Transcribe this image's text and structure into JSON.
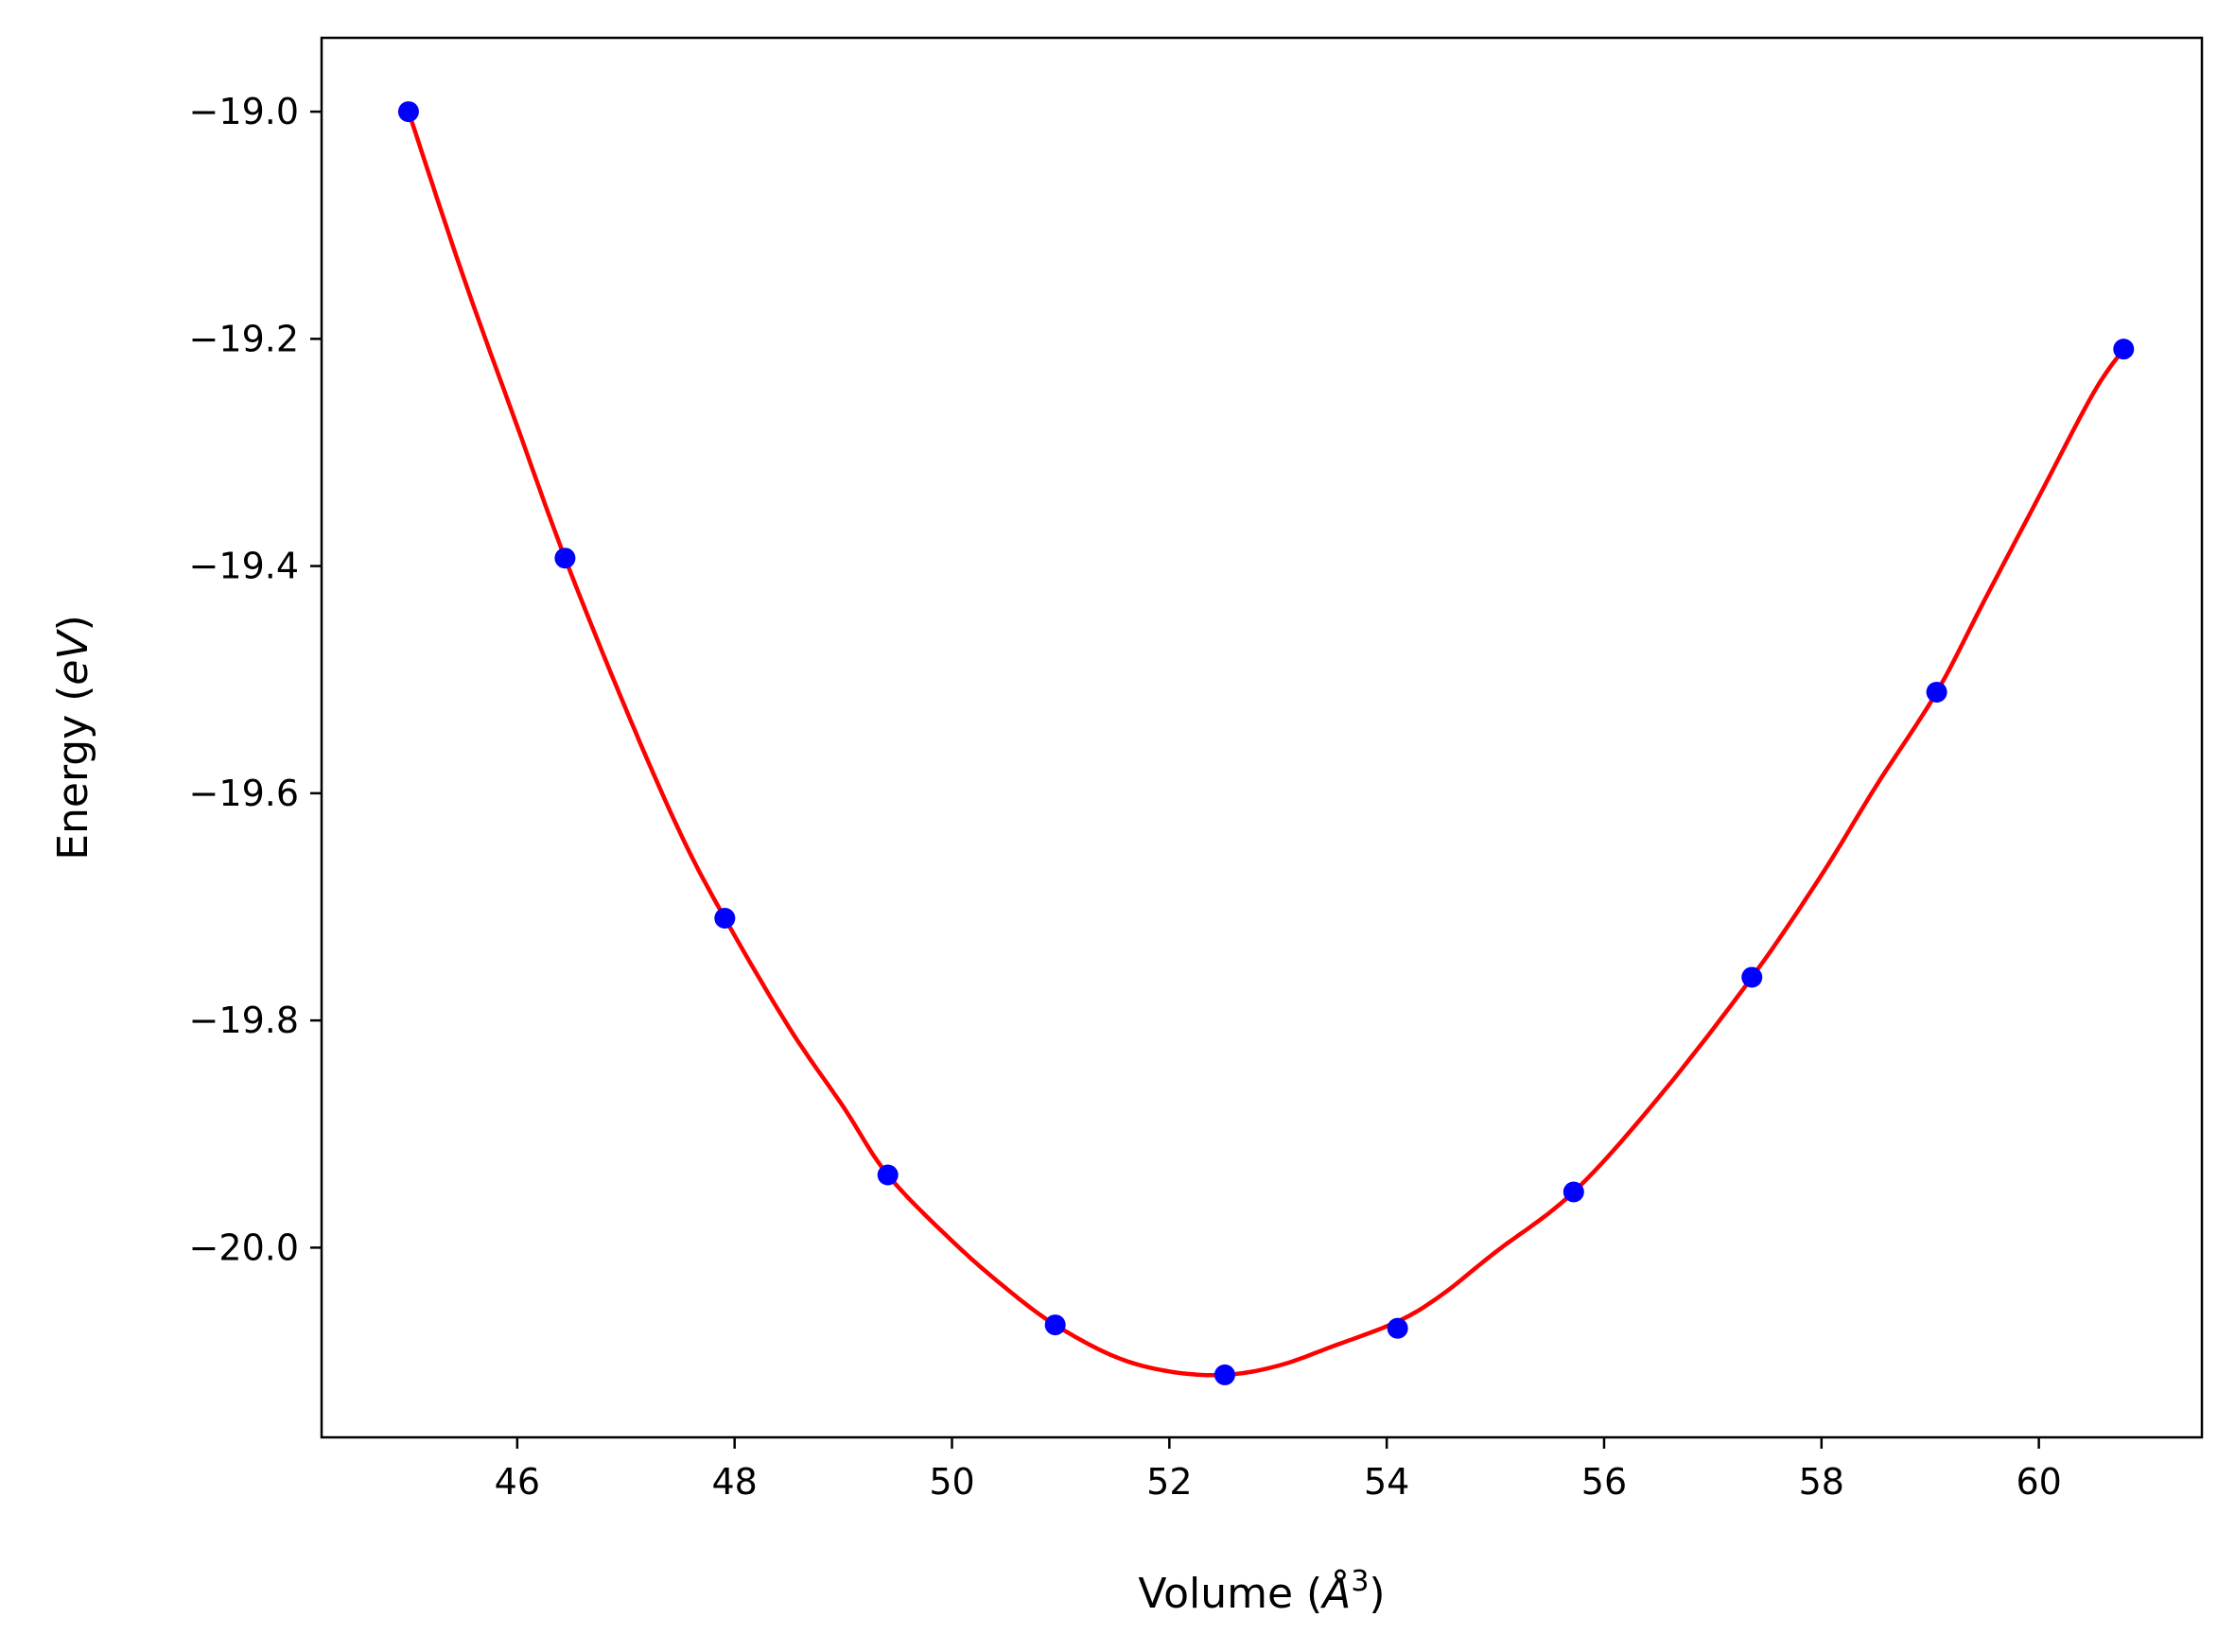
{
  "chart_data": {
    "type": "line",
    "title": "",
    "xlabel_prefix": "Volume (",
    "xlabel_unit": "Å",
    "xlabel_exp": "3",
    "xlabel_suffix": ")",
    "ylabel_prefix": "Energy (",
    "ylabel_unit": "eV",
    "ylabel_suffix": ")",
    "xlim": [
      44.2,
      61.5
    ],
    "ylim": [
      -20.167,
      -18.935
    ],
    "xticks": [
      46,
      48,
      50,
      52,
      54,
      56,
      58,
      60
    ],
    "xtick_labels": [
      "46",
      "48",
      "50",
      "52",
      "54",
      "56",
      "58",
      "60"
    ],
    "yticks": [
      -19.0,
      -19.2,
      -19.4,
      -19.6,
      -19.8,
      -20.0
    ],
    "ytick_labels": [
      "−19.0",
      "−19.2",
      "−19.4",
      "−19.6",
      "−19.8",
      "−20.0"
    ],
    "grid": false,
    "series": [
      {
        "kind": "scatter",
        "color": "#0000ff",
        "x": [
          45.0,
          46.44,
          47.91,
          49.41,
          50.95,
          52.51,
          54.1,
          55.72,
          57.36,
          59.06,
          60.78
        ],
        "y": [
          -19.0,
          -19.393,
          -19.71,
          -19.936,
          -20.068,
          -20.112,
          -20.071,
          -19.951,
          -19.762,
          -19.511,
          -19.209
        ]
      },
      {
        "kind": "fit-curve",
        "color": "#ff0000",
        "x": [
          45.0,
          45.5,
          46.0,
          46.44,
          47.0,
          47.5,
          47.91,
          48.5,
          49.0,
          49.41,
          50.0,
          50.5,
          50.95,
          51.5,
          52.0,
          52.51,
          53.0,
          53.5,
          54.1,
          54.5,
          55.0,
          55.72,
          56.5,
          57.36,
          58.0,
          58.5,
          59.06,
          59.5,
          60.0,
          60.5,
          60.78
        ],
        "y": [
          -19.0,
          -19.144,
          -19.277,
          -19.393,
          -19.526,
          -19.635,
          -19.71,
          -19.806,
          -19.876,
          -19.936,
          -19.994,
          -20.036,
          -20.068,
          -20.096,
          -20.109,
          -20.112,
          -20.104,
          -20.087,
          -20.065,
          -20.042,
          -20.004,
          -19.951,
          -19.868,
          -19.762,
          -19.672,
          -19.594,
          -19.511,
          -19.43,
          -19.339,
          -19.248,
          -19.209
        ]
      }
    ]
  }
}
